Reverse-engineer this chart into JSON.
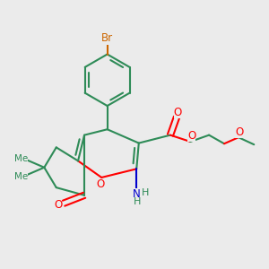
{
  "background_color": "#EBEBEB",
  "bond_color": "#2E8B57",
  "br_color": "#CC6600",
  "o_color": "#FF0000",
  "n_color": "#0000CD",
  "figsize": [
    3.0,
    3.0
  ],
  "dpi": 100,
  "xlim": [
    0.05,
    0.98
  ],
  "ylim": [
    0.13,
    0.97
  ]
}
